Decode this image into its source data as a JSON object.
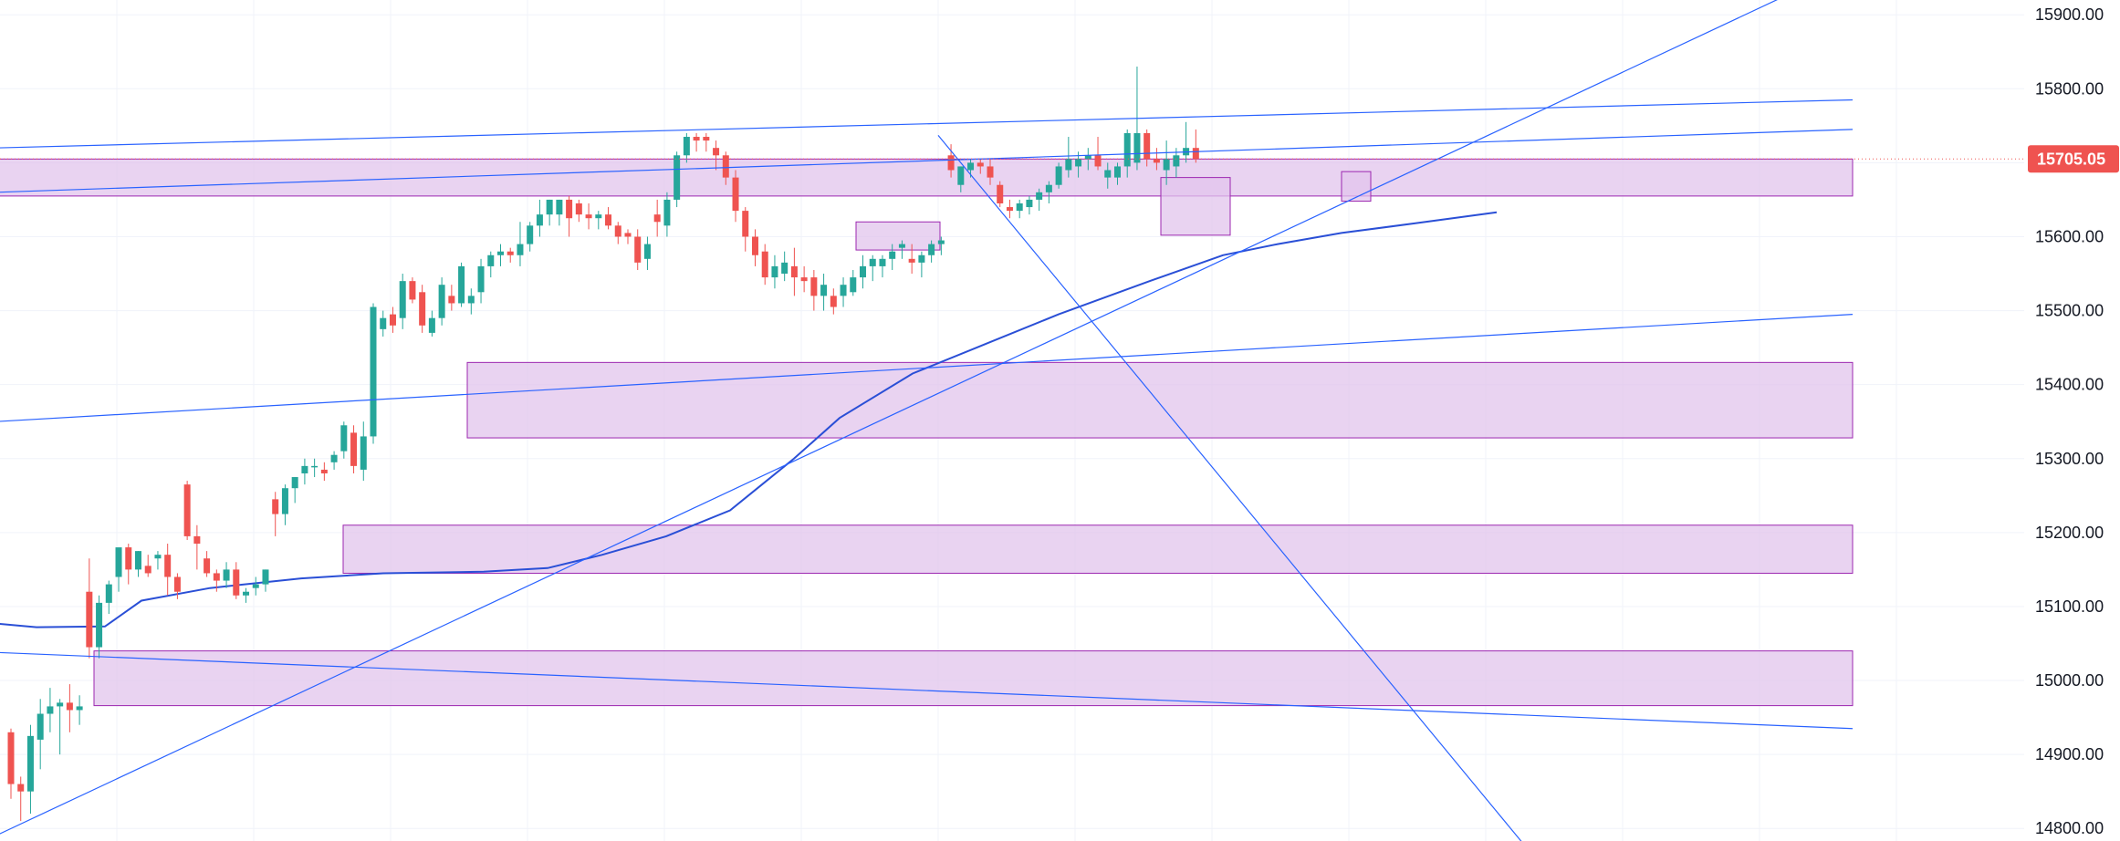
{
  "chart_data": {
    "type": "candlestick",
    "y_axis": {
      "ticks": [
        "14800.00",
        "14900.00",
        "15000.00",
        "15100.00",
        "15200.00",
        "15300.00",
        "15400.00",
        "15500.00",
        "15600.00",
        "15700.00",
        "15800.00",
        "15900.00"
      ],
      "range": [
        14783,
        15920
      ],
      "position": "right"
    },
    "last_price": "15705.05",
    "grid": true,
    "colors": {
      "up": "#26a69a",
      "down": "#ef5350",
      "zone_fill": "#e1c4ec",
      "zone_border": "#9c27b0",
      "trendline": "#2962ff",
      "moving_average": "#2a4fd6",
      "price_tag": "#ef5350",
      "grid": "#f0f3fa"
    },
    "candles": [
      [
        14930,
        14935,
        14840,
        14860
      ],
      [
        14860,
        14870,
        14810,
        14850
      ],
      [
        14850,
        14940,
        14820,
        14925
      ],
      [
        14920,
        14975,
        14880,
        14955
      ],
      [
        14955,
        14990,
        14930,
        14965
      ],
      [
        14965,
        14975,
        14900,
        14970
      ],
      [
        14970,
        14995,
        14930,
        14960
      ],
      [
        14960,
        14980,
        14940,
        14965
      ],
      [
        15120,
        15165,
        15030,
        15045
      ],
      [
        15045,
        15115,
        15030,
        15105
      ],
      [
        15105,
        15135,
        15090,
        15130
      ],
      [
        15140,
        15175,
        15120,
        15180
      ],
      [
        15180,
        15185,
        15130,
        15150
      ],
      [
        15150,
        15175,
        15140,
        15175
      ],
      [
        15155,
        15170,
        15140,
        15145
      ],
      [
        15165,
        15175,
        15150,
        15170
      ],
      [
        15170,
        15185,
        15115,
        15140
      ],
      [
        15140,
        15145,
        15110,
        15120
      ],
      [
        15265,
        15270,
        15190,
        15195
      ],
      [
        15195,
        15210,
        15150,
        15185
      ],
      [
        15165,
        15175,
        15140,
        15145
      ],
      [
        15145,
        15150,
        15120,
        15135
      ],
      [
        15135,
        15160,
        15125,
        15150
      ],
      [
        15150,
        15160,
        15110,
        15115
      ],
      [
        15115,
        15125,
        15105,
        15120
      ],
      [
        15125,
        15140,
        15115,
        15130
      ],
      [
        15130,
        15150,
        15120,
        15150
      ],
      [
        15245,
        15255,
        15195,
        15225
      ],
      [
        15225,
        15265,
        15210,
        15260
      ],
      [
        15260,
        15275,
        15240,
        15275
      ],
      [
        15280,
        15300,
        15265,
        15290
      ],
      [
        15290,
        15300,
        15275,
        15290
      ],
      [
        15285,
        15295,
        15270,
        15280
      ],
      [
        15295,
        15310,
        15285,
        15305
      ],
      [
        15310,
        15350,
        15300,
        15345
      ],
      [
        15335,
        15345,
        15280,
        15290
      ],
      [
        15285,
        15350,
        15270,
        15330
      ],
      [
        15330,
        15510,
        15320,
        15505
      ],
      [
        15475,
        15500,
        15465,
        15490
      ],
      [
        15495,
        15505,
        15470,
        15480
      ],
      [
        15490,
        15550,
        15475,
        15540
      ],
      [
        15540,
        15545,
        15510,
        15515
      ],
      [
        15525,
        15535,
        15470,
        15480
      ],
      [
        15470,
        15500,
        15465,
        15490
      ],
      [
        15490,
        15545,
        15480,
        15535
      ],
      [
        15520,
        15535,
        15500,
        15510
      ],
      [
        15510,
        15565,
        15505,
        15560
      ],
      [
        15510,
        15530,
        15495,
        15520
      ],
      [
        15525,
        15570,
        15510,
        15560
      ],
      [
        15560,
        15580,
        15545,
        15575
      ],
      [
        15575,
        15590,
        15560,
        15580
      ],
      [
        15580,
        15585,
        15565,
        15575
      ],
      [
        15575,
        15620,
        15560,
        15590
      ],
      [
        15590,
        15620,
        15580,
        15615
      ],
      [
        15615,
        15650,
        15600,
        15630
      ],
      [
        15630,
        15650,
        15615,
        15650
      ],
      [
        15630,
        15650,
        15615,
        15650
      ],
      [
        15650,
        15655,
        15600,
        15625
      ],
      [
        15645,
        15650,
        15620,
        15630
      ],
      [
        15630,
        15645,
        15610,
        15625
      ],
      [
        15625,
        15635,
        15610,
        15630
      ],
      [
        15630,
        15640,
        15610,
        15615
      ],
      [
        15615,
        15620,
        15590,
        15600
      ],
      [
        15605,
        15610,
        15590,
        15600
      ],
      [
        15600,
        15610,
        15555,
        15565
      ],
      [
        15570,
        15600,
        15555,
        15590
      ],
      [
        15630,
        15650,
        15600,
        15620
      ],
      [
        15615,
        15660,
        15600,
        15650
      ],
      [
        15650,
        15715,
        15640,
        15710
      ],
      [
        15710,
        15740,
        15700,
        15735
      ],
      [
        15735,
        15740,
        15715,
        15730
      ],
      [
        15735,
        15740,
        15715,
        15730
      ],
      [
        15720,
        15730,
        15690,
        15710
      ],
      [
        15710,
        15715,
        15670,
        15680
      ],
      [
        15680,
        15690,
        15620,
        15635
      ],
      [
        15635,
        15640,
        15580,
        15600
      ],
      [
        15600,
        15610,
        15560,
        15575
      ],
      [
        15580,
        15590,
        15535,
        15545
      ],
      [
        15545,
        15575,
        15530,
        15560
      ],
      [
        15550,
        15580,
        15540,
        15565
      ],
      [
        15560,
        15585,
        15520,
        15545
      ],
      [
        15545,
        15560,
        15525,
        15540
      ],
      [
        15545,
        15555,
        15500,
        15520
      ],
      [
        15520,
        15550,
        15500,
        15535
      ],
      [
        15520,
        15530,
        15495,
        15505
      ],
      [
        15520,
        15545,
        15505,
        15535
      ],
      [
        15525,
        15555,
        15520,
        15545
      ],
      [
        15545,
        15575,
        15530,
        15560
      ],
      [
        15560,
        15575,
        15540,
        15570
      ],
      [
        15560,
        15575,
        15545,
        15570
      ],
      [
        15570,
        15590,
        15555,
        15580
      ],
      [
        15585,
        15595,
        15570,
        15590
      ],
      [
        15570,
        15590,
        15550,
        15565
      ],
      [
        15565,
        15580,
        15545,
        15575
      ],
      [
        15575,
        15595,
        15565,
        15590
      ],
      [
        15590,
        15600,
        15575,
        15595
      ],
      [
        15710,
        15725,
        15680,
        15690
      ],
      [
        15670,
        15695,
        15660,
        15695
      ],
      [
        15690,
        15705,
        15680,
        15700
      ],
      [
        15700,
        15705,
        15685,
        15695
      ],
      [
        15695,
        15705,
        15670,
        15680
      ],
      [
        15670,
        15675,
        15640,
        15645
      ],
      [
        15640,
        15650,
        15625,
        15635
      ],
      [
        15635,
        15650,
        15625,
        15645
      ],
      [
        15640,
        15655,
        15630,
        15650
      ],
      [
        15650,
        15665,
        15635,
        15660
      ],
      [
        15660,
        15675,
        15645,
        15670
      ],
      [
        15670,
        15700,
        15665,
        15695
      ],
      [
        15690,
        15735,
        15680,
        15705
      ],
      [
        15695,
        15715,
        15680,
        15705
      ],
      [
        15705,
        15720,
        15690,
        15710
      ],
      [
        15710,
        15735,
        15690,
        15695
      ],
      [
        15680,
        15700,
        15665,
        15690
      ],
      [
        15680,
        15700,
        15670,
        15695
      ],
      [
        15695,
        15745,
        15680,
        15740
      ],
      [
        15700,
        15830,
        15690,
        15740
      ],
      [
        15740,
        15745,
        15695,
        15705
      ],
      [
        15705,
        15720,
        15690,
        15700
      ],
      [
        15690,
        15730,
        15670,
        15705
      ],
      [
        15695,
        15720,
        15680,
        15710
      ],
      [
        15710,
        15755,
        15700,
        15720
      ],
      [
        15720,
        15745,
        15700,
        15705
      ]
    ],
    "moving_average": [
      [
        -5,
        15077
      ],
      [
        40,
        15072
      ],
      [
        115,
        15073
      ],
      [
        155,
        15108
      ],
      [
        230,
        15125
      ],
      [
        330,
        15138
      ],
      [
        420,
        15145
      ],
      [
        530,
        15147
      ],
      [
        600,
        15152
      ],
      [
        660,
        15170
      ],
      [
        730,
        15195
      ],
      [
        800,
        15230
      ],
      [
        830,
        15260
      ],
      [
        870,
        15300
      ],
      [
        920,
        15355
      ],
      [
        1000,
        15415
      ],
      [
        1080,
        15455
      ],
      [
        1160,
        15495
      ],
      [
        1260,
        15540
      ],
      [
        1340,
        15575
      ],
      [
        1400,
        15590
      ],
      [
        1470,
        15605
      ],
      [
        1550,
        15618
      ],
      [
        1640,
        15633
      ]
    ],
    "zones": [
      {
        "x1": -5,
        "x2": 2030,
        "low": 15655,
        "high": 15705
      },
      {
        "x1": 938,
        "x2": 1030,
        "low": 15582,
        "high": 15620
      },
      {
        "x1": 1272,
        "x2": 1348,
        "low": 15602,
        "high": 15680
      },
      {
        "x1": 1470,
        "x2": 1502,
        "low": 15648,
        "high": 15688
      },
      {
        "x1": 512,
        "x2": 2030,
        "low": 15328,
        "high": 15430
      },
      {
        "x1": 376,
        "x2": 2030,
        "low": 15145,
        "high": 15210
      },
      {
        "x1": 103,
        "x2": 2030,
        "low": 14966,
        "high": 15040
      }
    ],
    "trendlines": [
      {
        "x1": -5,
        "y1": 15720,
        "x2": 2030,
        "y2": 15785
      },
      {
        "x1": -5,
        "y1": 15660,
        "x2": 2030,
        "y2": 15745
      },
      {
        "x1": -5,
        "y1": 15350,
        "x2": 2030,
        "y2": 15495
      },
      {
        "x1": -5,
        "y1": 15038,
        "x2": 2030,
        "y2": 14935
      },
      {
        "x1": -5,
        "y1": 14790,
        "x2": 1950,
        "y2": 15922
      },
      {
        "x1": 1028,
        "y1": 15737,
        "x2": 1670,
        "y2": 14778
      }
    ]
  }
}
